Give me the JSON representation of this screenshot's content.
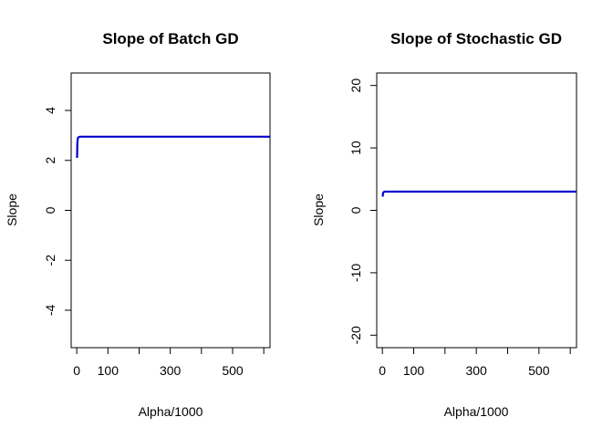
{
  "chart_data": [
    {
      "type": "line",
      "title": "Slope of Batch GD",
      "xlabel": "Alpha/1000",
      "ylabel": "Slope",
      "xlim": [
        -18,
        620
      ],
      "ylim": [
        -5.5,
        5.5
      ],
      "xticks": [
        0,
        100,
        300,
        500
      ],
      "xminor": [
        200,
        400,
        600
      ],
      "yticks": [
        -4,
        -2,
        0,
        2,
        4
      ],
      "color": "#0000cc",
      "series": [
        {
          "x": [
            1,
            2,
            3,
            4,
            5,
            6,
            8,
            10,
            15,
            20,
            50,
            100,
            200,
            300,
            400,
            500,
            620
          ],
          "y": [
            2.1,
            2.7,
            2.85,
            2.9,
            2.92,
            2.93,
            2.94,
            2.95,
            2.95,
            2.95,
            2.95,
            2.95,
            2.95,
            2.95,
            2.95,
            2.95,
            2.95
          ]
        }
      ]
    },
    {
      "type": "line",
      "title": "Slope of Stochastic GD",
      "xlabel": "Alpha/1000",
      "ylabel": "Slope",
      "xlim": [
        -18,
        620
      ],
      "ylim": [
        -22,
        22
      ],
      "xticks": [
        0,
        100,
        300,
        500
      ],
      "xminor": [
        200,
        400,
        600
      ],
      "yticks": [
        -20,
        -10,
        0,
        10,
        20
      ],
      "color": "#0000cc",
      "series": [
        {
          "x": [
            1,
            2,
            3,
            4,
            5,
            8,
            10,
            15,
            20,
            50,
            100,
            200,
            300,
            400,
            500,
            620
          ],
          "y": [
            2.2,
            2.7,
            2.85,
            2.9,
            2.95,
            3.0,
            3.0,
            3.0,
            3.0,
            3.0,
            3.0,
            3.0,
            3.0,
            3.0,
            3.0,
            3.0
          ]
        }
      ]
    }
  ]
}
